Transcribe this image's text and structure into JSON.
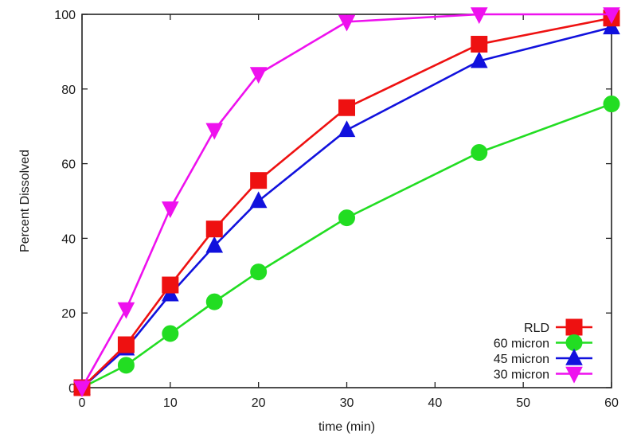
{
  "chart_data": {
    "type": "line",
    "title": "",
    "xlabel": "time (min)",
    "ylabel": "Percent Dissolved",
    "xlim": [
      0,
      60
    ],
    "ylim": [
      0,
      100
    ],
    "xticks": [
      0,
      10,
      20,
      30,
      40,
      50,
      60
    ],
    "yticks": [
      0,
      20,
      40,
      60,
      80,
      100
    ],
    "grid": false,
    "legend_position": "bottom-right",
    "x": [
      0,
      5,
      10,
      15,
      20,
      30,
      45,
      60
    ],
    "series": [
      {
        "name": "RLD",
        "color": "#ee1111",
        "marker": "square",
        "values": [
          0,
          11.5,
          27.5,
          42.5,
          55.5,
          75,
          92,
          99
        ]
      },
      {
        "name": "60 micron",
        "color": "#22dd22",
        "marker": "circle",
        "values": [
          0,
          6,
          14.5,
          23,
          31,
          45.5,
          63,
          76
        ]
      },
      {
        "name": "45 micron",
        "color": "#1111dd",
        "marker": "triangle-up",
        "values": [
          0,
          10.5,
          25,
          38,
          50,
          69,
          87.5,
          96.5
        ]
      },
      {
        "name": "30 micron",
        "color": "#ee11ee",
        "marker": "triangle-down",
        "values": [
          0,
          21,
          48,
          69,
          84,
          98,
          100,
          100
        ]
      }
    ]
  }
}
